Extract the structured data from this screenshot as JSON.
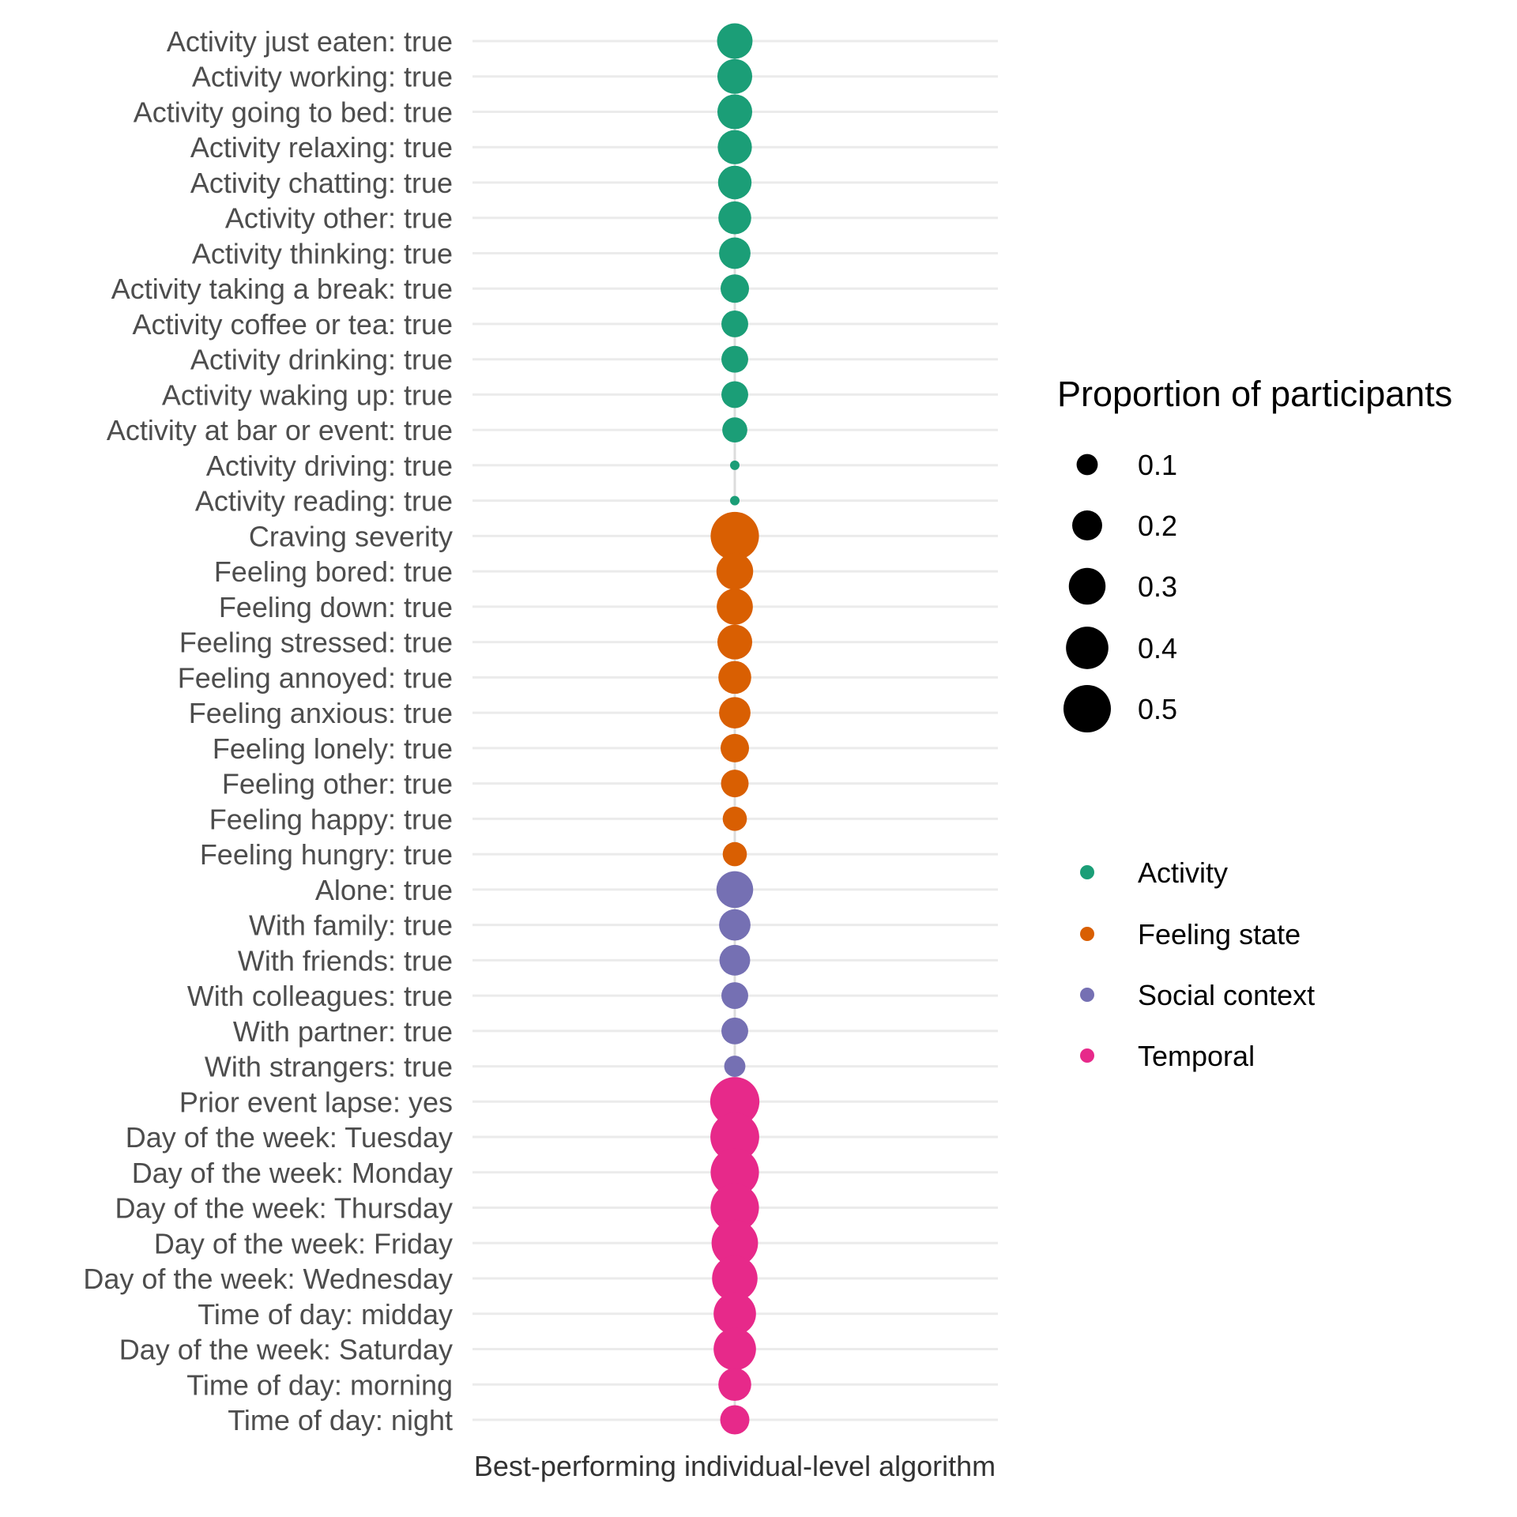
{
  "chart_data": {
    "type": "scatter",
    "xlabel": "Best-performing individual-level algorithm",
    "categories": [
      "Activity just eaten: true",
      "Activity working: true",
      "Activity going to bed: true",
      "Activity relaxing: true",
      "Activity chatting: true",
      "Activity other: true",
      "Activity thinking: true",
      "Activity taking a break: true",
      "Activity coffee or tea: true",
      "Activity drinking: true",
      "Activity waking up: true",
      "Activity at bar or event: true",
      "Activity driving: true",
      "Activity reading: true",
      "Craving severity",
      "Feeling bored: true",
      "Feeling down: true",
      "Feeling stressed: true",
      "Feeling annoyed: true",
      "Feeling anxious: true",
      "Feeling lonely: true",
      "Feeling other: true",
      "Feeling happy: true",
      "Feeling hungry: true",
      "Alone: true",
      "With family: true",
      "With friends: true",
      "With colleagues: true",
      "With partner: true",
      "With strangers: true",
      "Prior event lapse: yes",
      "Day of the week:  Tuesday",
      "Day of the week:  Monday",
      "Day of the week:  Thursday",
      "Day of the week:  Friday",
      "Day of the week:  Wednesday",
      "Time of day: midday",
      "Day of the week:  Saturday",
      "Time of day: morning",
      "Time of day: night"
    ],
    "values": [
      0.28,
      0.27,
      0.27,
      0.26,
      0.25,
      0.24,
      0.22,
      0.18,
      0.16,
      0.16,
      0.16,
      0.14,
      0.02,
      0.02,
      0.52,
      0.3,
      0.29,
      0.27,
      0.24,
      0.22,
      0.18,
      0.17,
      0.13,
      0.13,
      0.3,
      0.22,
      0.21,
      0.16,
      0.16,
      0.1,
      0.54,
      0.53,
      0.52,
      0.52,
      0.48,
      0.46,
      0.4,
      0.4,
      0.24,
      0.19
    ],
    "groups": [
      "Activity",
      "Activity",
      "Activity",
      "Activity",
      "Activity",
      "Activity",
      "Activity",
      "Activity",
      "Activity",
      "Activity",
      "Activity",
      "Activity",
      "Activity",
      "Activity",
      "Feeling state",
      "Feeling state",
      "Feeling state",
      "Feeling state",
      "Feeling state",
      "Feeling state",
      "Feeling state",
      "Feeling state",
      "Feeling state",
      "Feeling state",
      "Social context",
      "Social context",
      "Social context",
      "Social context",
      "Social context",
      "Social context",
      "Temporal",
      "Temporal",
      "Temporal",
      "Temporal",
      "Temporal",
      "Temporal",
      "Temporal",
      "Temporal",
      "Temporal",
      "Temporal"
    ],
    "size_legend": {
      "title": "Proportion of participants",
      "values": [
        0.1,
        0.2,
        0.3,
        0.4,
        0.5
      ],
      "labels": [
        "0.1",
        "0.2",
        "0.3",
        "0.4",
        "0.5"
      ]
    },
    "color_legend": [
      {
        "name": "Activity",
        "color": "#1b9e77"
      },
      {
        "name": "Feeling state",
        "color": "#d95f02"
      },
      {
        "name": "Social context",
        "color": "#7570b3"
      },
      {
        "name": "Temporal",
        "color": "#e7298a"
      }
    ],
    "grid": true,
    "legend_position": "right"
  }
}
